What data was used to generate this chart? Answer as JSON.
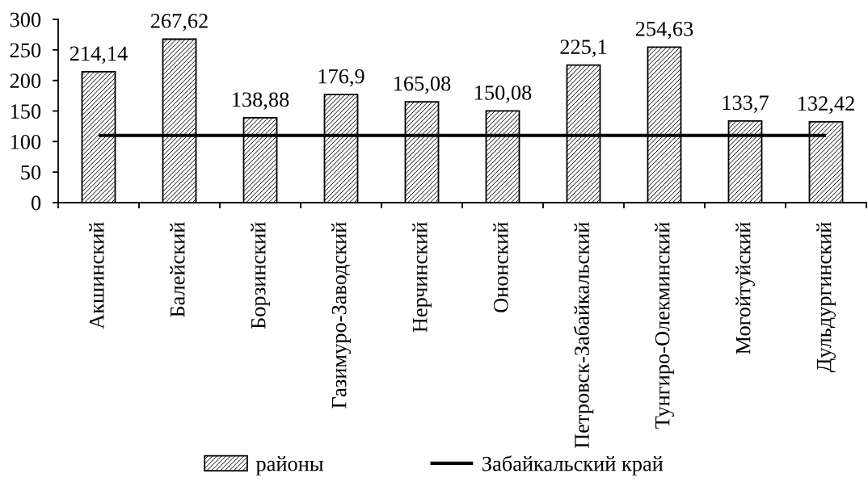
{
  "chart_data": {
    "type": "bar",
    "categories": [
      "Акшинский",
      "Балейский",
      "Борзинский",
      "Газимуро-Заводский",
      "Нерчинский",
      "Ононский",
      "Петровск-Забайкальский",
      "Тунгиро-Олекминский",
      "Могойтуйский",
      "Дульдургинский"
    ],
    "series": [
      {
        "name": "районы",
        "color": "#000000",
        "values": [
          214.14,
          267.62,
          138.88,
          176.9,
          165.08,
          150.08,
          225.1,
          254.63,
          133.7,
          132.42
        ],
        "value_labels": [
          "214,14",
          "267,62",
          "138,88",
          "176,9",
          "165,08",
          "150,08",
          "225,1",
          "254,63",
          "133,7",
          "132,42"
        ]
      },
      {
        "name": "Забайкальский край",
        "type": "line",
        "color": "#000000",
        "values": [
          110,
          110,
          110,
          110,
          110,
          110,
          110,
          110,
          110,
          110
        ]
      }
    ],
    "ylim": [
      0,
      300
    ],
    "yticks": [
      0,
      50,
      100,
      150,
      200,
      250,
      300
    ],
    "grid": false,
    "legend": "bottom",
    "marker": "none",
    "line_style": "solid"
  }
}
